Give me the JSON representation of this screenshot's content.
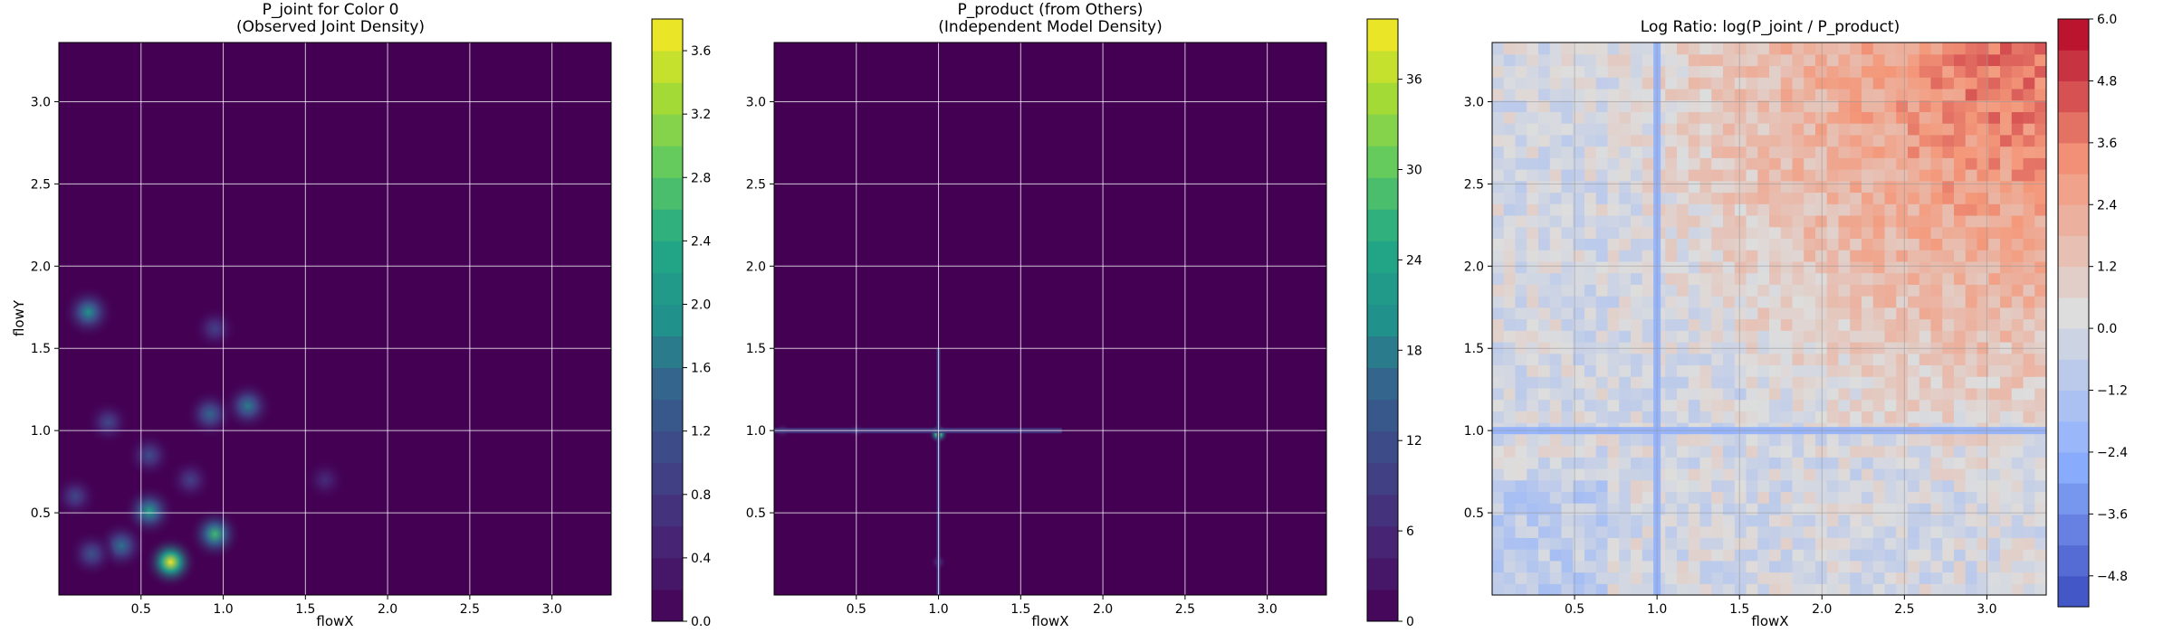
{
  "chart_data": [
    {
      "type": "heatmap",
      "title": "P_joint for Color 0",
      "subtitle": "(Observed Joint Density)",
      "xlabel": "flowX",
      "ylabel": "flowY",
      "xlim": [
        0.0,
        3.36
      ],
      "ylim": [
        0.0,
        3.36
      ],
      "x_ticks": [
        0.5,
        1.0,
        1.5,
        2.0,
        2.5,
        3.0
      ],
      "x_tick_labels": [
        "0.5",
        "1.0",
        "1.5",
        "2.0",
        "2.5",
        "3.0"
      ],
      "y_ticks": [
        0.5,
        1.0,
        1.5,
        2.0,
        2.5,
        3.0
      ],
      "y_tick_labels": [
        "0.5",
        "1.0",
        "1.5",
        "2.0",
        "2.5",
        "3.0"
      ],
      "grid": true,
      "colormap": "viridis",
      "background_color": "#440154",
      "colorbar": {
        "min": 0.0,
        "max": 3.8,
        "ticks": [
          0.0,
          0.4,
          0.8,
          1.2,
          1.6,
          2.0,
          2.4,
          2.8,
          3.2,
          3.6
        ],
        "tick_labels": [
          "0.0",
          "0.4",
          "0.8",
          "1.2",
          "1.6",
          "2.0",
          "2.4",
          "2.8",
          "3.2",
          "3.6"
        ],
        "levels": 19
      },
      "peaks": [
        {
          "x": 0.18,
          "y": 1.72,
          "value": 1.9
        },
        {
          "x": 0.95,
          "y": 1.62,
          "value": 0.9
        },
        {
          "x": 0.92,
          "y": 1.1,
          "value": 1.5
        },
        {
          "x": 1.15,
          "y": 1.15,
          "value": 1.7
        },
        {
          "x": 0.3,
          "y": 1.05,
          "value": 1.0
        },
        {
          "x": 0.55,
          "y": 0.85,
          "value": 1.1
        },
        {
          "x": 0.1,
          "y": 0.6,
          "value": 1.0
        },
        {
          "x": 0.55,
          "y": 0.51,
          "value": 2.2
        },
        {
          "x": 0.38,
          "y": 0.3,
          "value": 1.6
        },
        {
          "x": 0.95,
          "y": 0.37,
          "value": 2.6
        },
        {
          "x": 0.68,
          "y": 0.2,
          "value": 3.7
        },
        {
          "x": 0.2,
          "y": 0.25,
          "value": 1.2
        },
        {
          "x": 1.62,
          "y": 0.7,
          "value": 0.6
        },
        {
          "x": 0.8,
          "y": 0.7,
          "value": 0.9
        }
      ]
    },
    {
      "type": "heatmap",
      "title": "P_product (from Others)",
      "subtitle": "(Independent Model Density)",
      "xlabel": "flowX",
      "ylabel": "",
      "xlim": [
        0.0,
        3.36
      ],
      "ylim": [
        0.0,
        3.36
      ],
      "x_ticks": [
        0.5,
        1.0,
        1.5,
        2.0,
        2.5,
        3.0
      ],
      "x_tick_labels": [
        "0.5",
        "1.0",
        "1.5",
        "2.0",
        "2.5",
        "3.0"
      ],
      "y_ticks": [
        0.5,
        1.0,
        1.5,
        2.0,
        2.5,
        3.0
      ],
      "y_tick_labels": [
        "0.5",
        "1.0",
        "1.5",
        "2.0",
        "2.5",
        "3.0"
      ],
      "grid": true,
      "colormap": "viridis",
      "background_color": "#440154",
      "colorbar": {
        "min": 0,
        "max": 40,
        "ticks": [
          0,
          6,
          12,
          18,
          24,
          30,
          36
        ],
        "tick_labels": [
          "0",
          "6",
          "12",
          "18",
          "24",
          "30",
          "36"
        ],
        "levels": 19
      },
      "peaks": [
        {
          "x": 1.0,
          "y": 0.98,
          "value": 40
        },
        {
          "x": 1.0,
          "y": 0.2,
          "value": 8
        },
        {
          "x": 0.05,
          "y": 1.0,
          "value": 6
        },
        {
          "x": 0.5,
          "y": 1.0,
          "value": 6
        }
      ]
    },
    {
      "type": "heatmap",
      "title": "Log Ratio: log(P_joint / P_product)",
      "subtitle": "",
      "xlabel": "flowX",
      "ylabel": "",
      "xlim": [
        0.0,
        3.36
      ],
      "ylim": [
        0.0,
        3.36
      ],
      "x_ticks": [
        0.5,
        1.0,
        1.5,
        2.0,
        2.5,
        3.0
      ],
      "x_tick_labels": [
        "0.5",
        "1.0",
        "1.5",
        "2.0",
        "2.5",
        "3.0"
      ],
      "y_ticks": [
        0.5,
        1.0,
        1.5,
        2.0,
        2.5,
        3.0
      ],
      "y_tick_labels": [
        "0.5",
        "1.0",
        "1.5",
        "2.0",
        "2.5",
        "3.0"
      ],
      "grid": true,
      "colormap": "coolwarm",
      "background_color": "#dcdddd",
      "colorbar": {
        "min": -5.4,
        "max": 6.0,
        "ticks": [
          -4.8,
          -3.6,
          -2.4,
          -1.2,
          0.0,
          1.2,
          2.4,
          3.6,
          4.8,
          6.0
        ],
        "tick_labels": [
          "−4.8",
          "−3.6",
          "−2.4",
          "−1.2",
          "0.0",
          "1.2",
          "2.4",
          "3.6",
          "4.8",
          "6.0"
        ],
        "levels": 19
      },
      "strong_negative_lines": {
        "x": [
          1.0
        ],
        "y": [
          1.0
        ]
      },
      "positive_corner": {
        "x": 3.2,
        "y": 3.2,
        "value": 4.0
      }
    }
  ]
}
